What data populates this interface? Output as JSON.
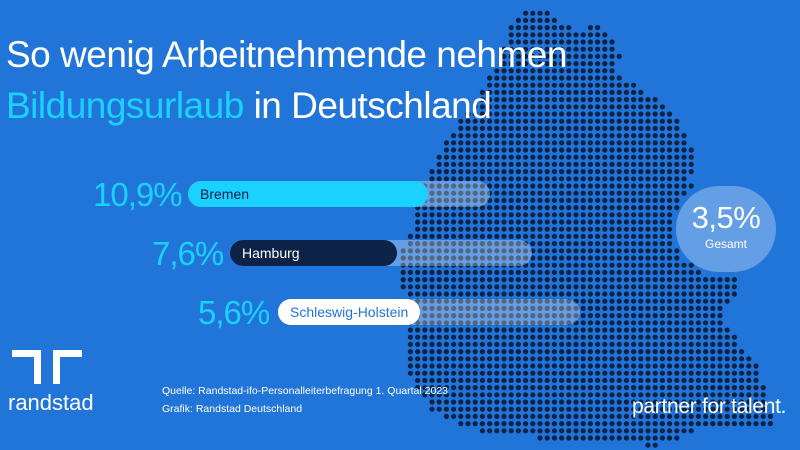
{
  "title": {
    "line1": "So wenig Arbeitnehmende nehmen",
    "line2_highlight": "Bildungsurlaub",
    "line2_rest": " in Deutschland"
  },
  "chart_data": {
    "type": "bar",
    "orientation": "horizontal",
    "title": "So wenig Arbeitnehmende nehmen Bildungsurlaub in Deutschland",
    "categories": [
      "Bremen",
      "Hamburg",
      "Schleswig-Holstein"
    ],
    "values": [
      10.9,
      7.6,
      5.6
    ],
    "value_labels": [
      "10,9%",
      "7,6%",
      "5,6%"
    ],
    "unit": "%",
    "total": {
      "value": 3.5,
      "label": "3,5%",
      "caption": "Gesamt"
    }
  },
  "colors": {
    "background": "#2175d9",
    "accent": "#1ad1ff",
    "navy": "#0c2347",
    "map_dot": "#0c2347",
    "white": "#ffffff"
  },
  "footer": {
    "brand": "randstad",
    "source": "Quelle: Randstad-ifo-Personalleiterbefragung 1. Quartal 2023",
    "graphic": "Grafik: Randstad Deutschland",
    "slogan": "partner for talent."
  }
}
